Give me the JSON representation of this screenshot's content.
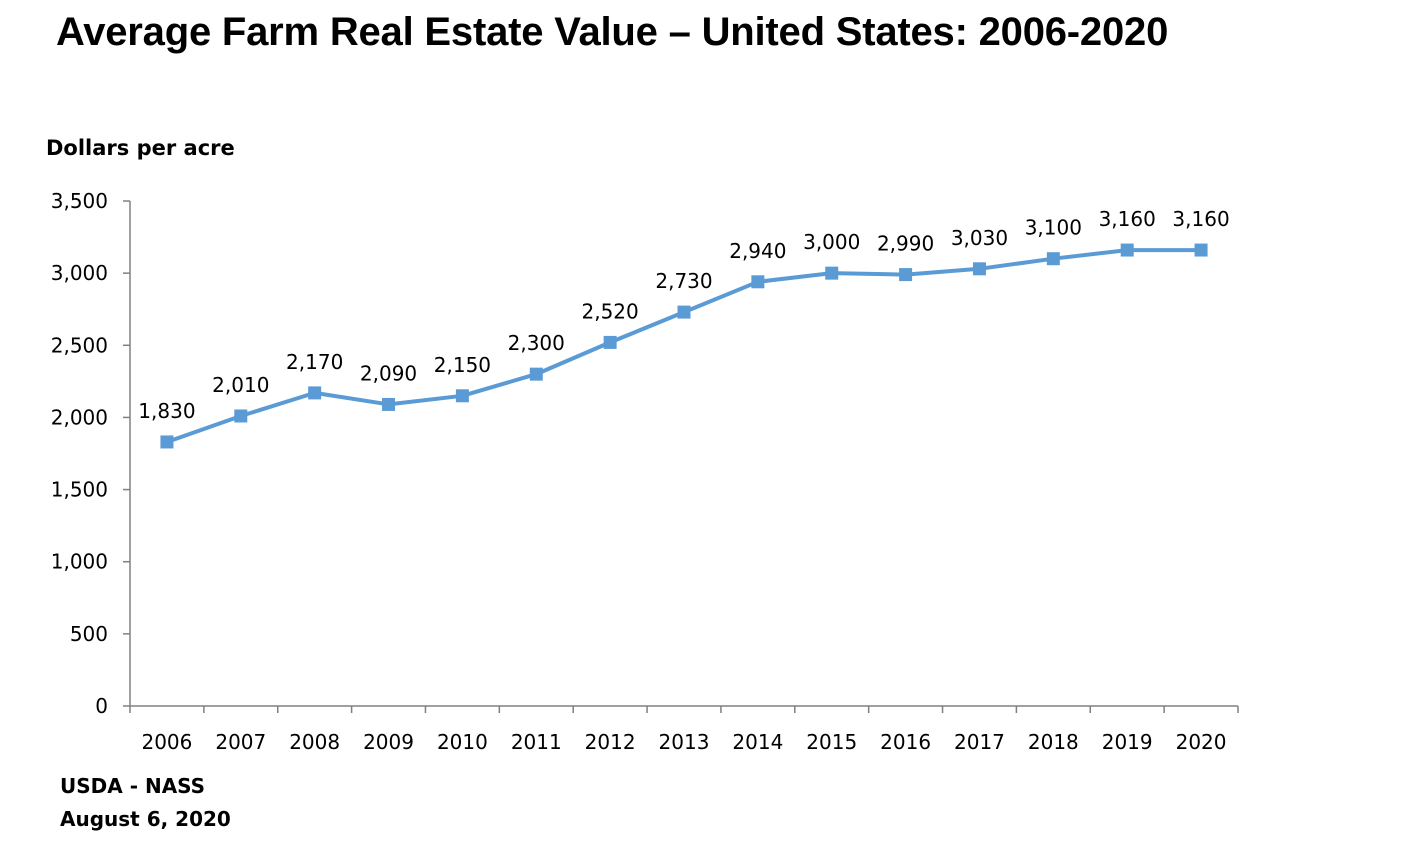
{
  "chart_data": {
    "type": "line",
    "title": "Average Farm Real Estate Value – United States: 2006-2020",
    "ylabel": "Dollars per acre",
    "xlabel": "",
    "x": [
      "2006",
      "2007",
      "2008",
      "2009",
      "2010",
      "2011",
      "2012",
      "2013",
      "2014",
      "2015",
      "2016",
      "2017",
      "2018",
      "2019",
      "2020"
    ],
    "series": [
      {
        "values": [
          1830,
          2010,
          2170,
          2090,
          2150,
          2300,
          2520,
          2730,
          2940,
          3000,
          2990,
          3030,
          3100,
          3160,
          3160
        ],
        "labels": [
          "1,830",
          "2,010",
          "2,170",
          "2,090",
          "2,150",
          "2,300",
          "2,520",
          "2,730",
          "2,940",
          "3,000",
          "2,990",
          "3,030",
          "3,100",
          "3,160",
          "3,160"
        ],
        "color": "#5b9bd5",
        "marker": "square"
      }
    ],
    "ylim": [
      0,
      3500
    ],
    "yticks": [
      0,
      500,
      1000,
      1500,
      2000,
      2500,
      3000,
      3500
    ],
    "ytick_labels": [
      "0",
      "500",
      "1,000",
      "1,500",
      "2,000",
      "2,500",
      "3,000",
      "3,500"
    ],
    "grid": false,
    "legend": "none"
  },
  "source": {
    "line1": "USDA - NASS",
    "line2": "August 6, 2020"
  }
}
